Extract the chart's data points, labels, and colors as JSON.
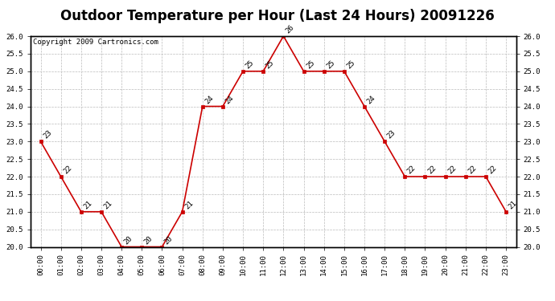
{
  "title": "Outdoor Temperature per Hour (Last 24 Hours) 20091226",
  "copyright_text": "Copyright 2009 Cartronics.com",
  "hours": [
    "00:00",
    "01:00",
    "02:00",
    "03:00",
    "04:00",
    "05:00",
    "06:00",
    "07:00",
    "08:00",
    "09:00",
    "10:00",
    "11:00",
    "12:00",
    "13:00",
    "14:00",
    "15:00",
    "16:00",
    "17:00",
    "18:00",
    "19:00",
    "20:00",
    "21:00",
    "22:00",
    "23:00"
  ],
  "temps": [
    23,
    22,
    21,
    21,
    20,
    20,
    20,
    21,
    24,
    24,
    25,
    25,
    26,
    25,
    25,
    25,
    24,
    23,
    22,
    22,
    22,
    22,
    22,
    21
  ],
  "line_color": "#cc0000",
  "marker_color": "#cc0000",
  "grid_color": "#bbbbbb",
  "bg_color": "#ffffff",
  "ylim_min": 20.0,
  "ylim_max": 26.0,
  "ytick_step": 0.5,
  "title_fontsize": 12,
  "label_fontsize": 6.5,
  "annotation_fontsize": 6.5,
  "copyright_fontsize": 6.5
}
